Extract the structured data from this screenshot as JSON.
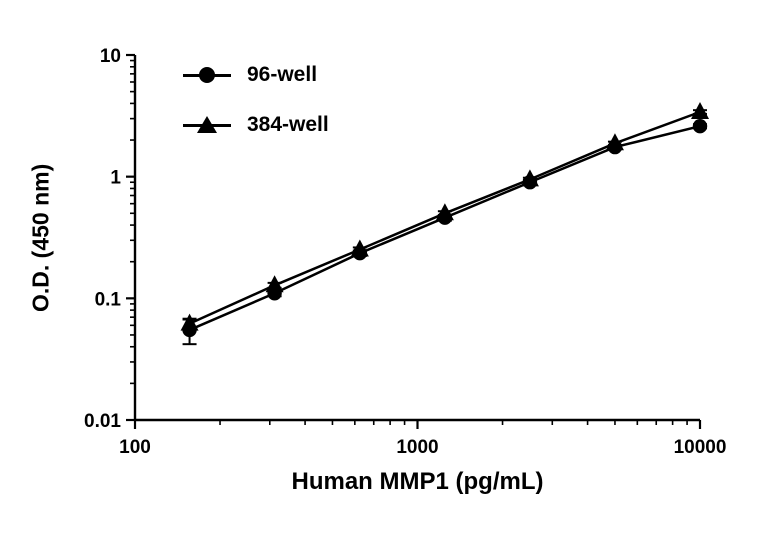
{
  "figure": {
    "background": "#ffffff",
    "line_color": "#000000"
  },
  "chart_data": {
    "type": "line",
    "xscale": "log",
    "yscale": "log",
    "title": "",
    "xlabel": "Human MMP1 (pg/mL)",
    "ylabel": "O.D. (450 nm)",
    "xlim": [
      100,
      10000
    ],
    "ylim": [
      0.01,
      10
    ],
    "x_major_ticks": [
      100,
      1000,
      10000
    ],
    "x_tick_labels": [
      "100",
      "1000",
      "10000"
    ],
    "y_major_ticks": [
      0.01,
      0.1,
      1,
      10
    ],
    "y_tick_labels": [
      "0.01",
      "0.1",
      "1",
      "10"
    ],
    "grid": false,
    "legend_position": "top-left-inside",
    "color": "#000000",
    "x": [
      156,
      312,
      625,
      1250,
      2500,
      5000,
      10000
    ],
    "series": [
      {
        "name": "96-well",
        "marker": "circle",
        "values": [
          0.055,
          0.11,
          0.235,
          0.46,
          0.9,
          1.75,
          2.6
        ],
        "errors": [
          0.013,
          0.006,
          0.012,
          0.025,
          0.04,
          0.07,
          0.1
        ]
      },
      {
        "name": "384-well",
        "marker": "triangle",
        "values": [
          0.062,
          0.128,
          0.252,
          0.5,
          0.95,
          1.88,
          3.4
        ],
        "errors": [
          0.005,
          0.006,
          0.01,
          0.02,
          0.03,
          0.06,
          0.12
        ]
      }
    ]
  }
}
